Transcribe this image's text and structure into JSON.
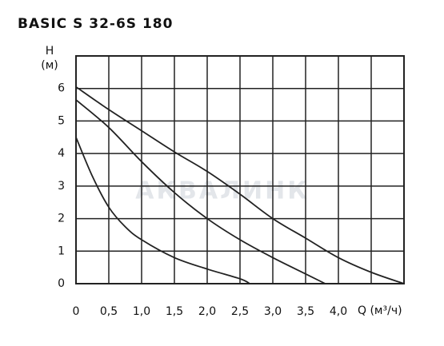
{
  "chart_data": {
    "type": "line",
    "title": "BASIC S 32-6S 180",
    "ylabel": "H",
    "yunit": "(м)",
    "xlabel": "Q (м³/ч)",
    "watermark": "АКВАЛИНК",
    "xlim": [
      0,
      5
    ],
    "ylim": [
      0,
      7
    ],
    "xticks": [
      0,
      {
        "value": 0.5,
        "label": "0,5"
      },
      {
        "value": 1,
        "label": "1,0"
      },
      {
        "value": 1.5,
        "label": "1,5"
      },
      {
        "value": 2,
        "label": "2,0"
      },
      {
        "value": 2.5,
        "label": "2,5"
      },
      {
        "value": 3,
        "label": "3,0"
      },
      {
        "value": 3.5,
        "label": "3,5"
      },
      {
        "value": 4,
        "label": "4,0"
      },
      {
        "value": 4.5,
        "label": null
      }
    ],
    "yticks": [
      0,
      1,
      2,
      3,
      4,
      5,
      6
    ],
    "grid": true,
    "color": "#222",
    "series": [
      {
        "x": [
          0,
          0.5,
          1,
          1.5,
          2,
          2.5,
          3,
          3.5,
          4,
          4.5,
          5
        ],
        "values": [
          6.05,
          5.35,
          4.7,
          4.05,
          3.45,
          2.75,
          2.0,
          1.4,
          0.8,
          0.35,
          0
        ]
      },
      {
        "x": [
          0,
          0.5,
          1,
          1.5,
          2,
          2.5,
          3,
          3.5,
          3.8
        ],
        "values": [
          5.65,
          4.8,
          3.75,
          2.8,
          2.0,
          1.35,
          0.8,
          0.3,
          0
        ]
      },
      {
        "x": [
          0,
          0.25,
          0.5,
          0.75,
          1,
          1.5,
          2,
          2.5,
          2.65
        ],
        "values": [
          4.5,
          3.3,
          2.35,
          1.75,
          1.35,
          0.8,
          0.45,
          0.15,
          0
        ]
      }
    ]
  }
}
